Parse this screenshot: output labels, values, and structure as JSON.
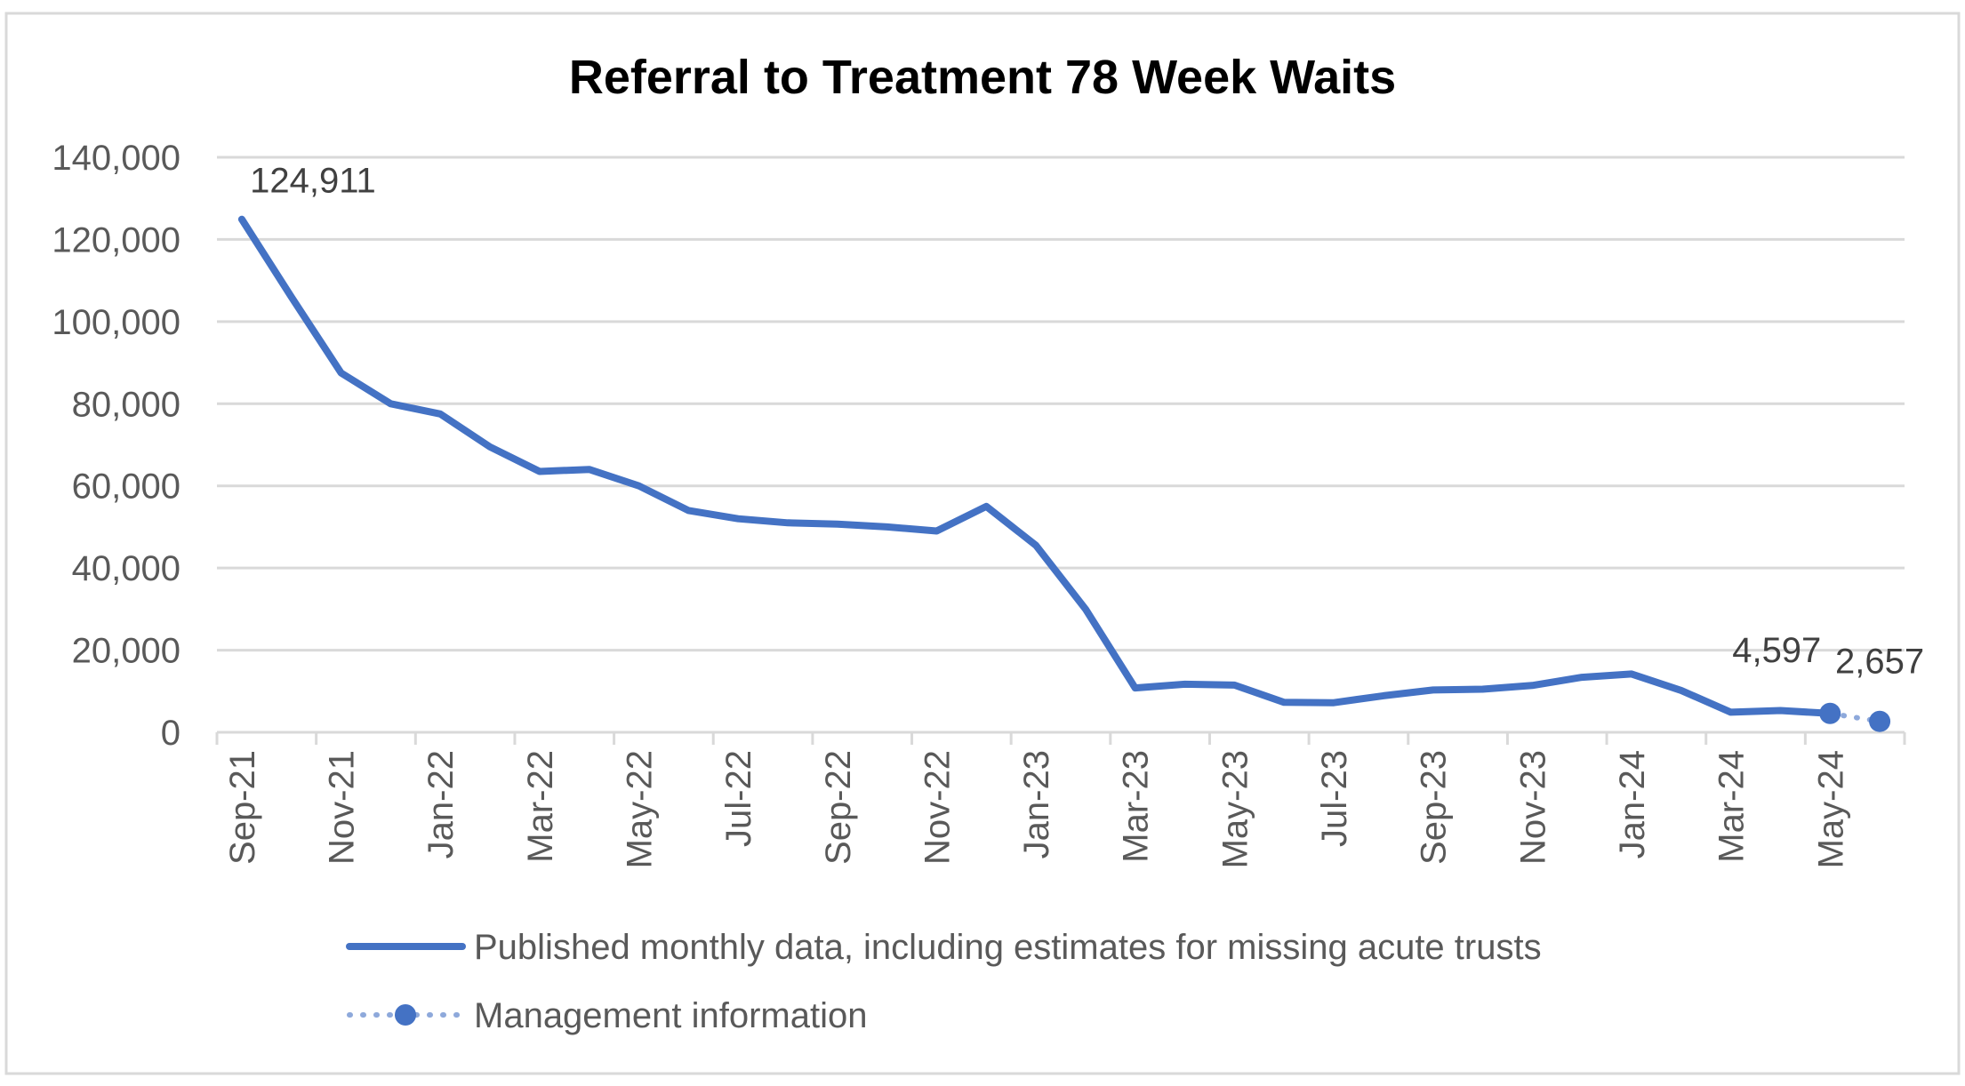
{
  "chart_data": {
    "type": "line",
    "title": "Referral to Treatment 78 Week Waits",
    "xlabel": "",
    "ylabel": "",
    "ylim": [
      0,
      140000
    ],
    "y_ticks": [
      0,
      20000,
      40000,
      60000,
      80000,
      100000,
      120000,
      140000
    ],
    "y_tick_labels": [
      "0",
      "20,000",
      "40,000",
      "60,000",
      "80,000",
      "100,000",
      "120,000",
      "140,000"
    ],
    "x": [
      "Sep-21",
      "Oct-21",
      "Nov-21",
      "Dec-21",
      "Jan-22",
      "Feb-22",
      "Mar-22",
      "Apr-22",
      "May-22",
      "Jun-22",
      "Jul-22",
      "Aug-22",
      "Sep-22",
      "Oct-22",
      "Nov-22",
      "Dec-22",
      "Jan-23",
      "Feb-23",
      "Mar-23",
      "Apr-23",
      "May-23",
      "Jun-23",
      "Jul-23",
      "Aug-23",
      "Sep-23",
      "Oct-23",
      "Nov-23",
      "Dec-23",
      "Jan-24",
      "Feb-24",
      "Mar-24",
      "Apr-24",
      "May-24",
      "Jun-24"
    ],
    "x_tick_labels": [
      "Sep-21",
      "Nov-21",
      "Jan-22",
      "Mar-22",
      "May-22",
      "Jul-22",
      "Sep-22",
      "Nov-22",
      "Jan-23",
      "Mar-23",
      "May-23",
      "Jul-23",
      "Sep-23",
      "Nov-23",
      "Jan-24",
      "Mar-24",
      "May-24"
    ],
    "grid": true,
    "legend_position": "bottom",
    "series": [
      {
        "name": "Published monthly data, including estimates for missing acute trusts",
        "style": "solid",
        "color": "#4472C4",
        "values": [
          124911,
          106000,
          87500,
          80000,
          77500,
          69500,
          63500,
          64000,
          60000,
          54000,
          52000,
          51000,
          50700,
          50000,
          49000,
          55000,
          45500,
          30000,
          10800,
          11700,
          11500,
          7300,
          7200,
          8900,
          10300,
          10500,
          11400,
          13400,
          14200,
          10200,
          4900,
          5300,
          4597,
          null
        ]
      },
      {
        "name": "Management information",
        "style": "dotted",
        "color": "#8EA9DB",
        "marker_color": "#4472C4",
        "values": [
          null,
          null,
          null,
          null,
          null,
          null,
          null,
          null,
          null,
          null,
          null,
          null,
          null,
          null,
          null,
          null,
          null,
          null,
          null,
          null,
          null,
          null,
          null,
          null,
          null,
          null,
          null,
          null,
          null,
          null,
          null,
          null,
          4597,
          2657
        ]
      }
    ],
    "data_labels": [
      {
        "index": 0,
        "series": 0,
        "text": "124,911"
      },
      {
        "index": 32,
        "series": 0,
        "text": "4,597"
      },
      {
        "index": 33,
        "series": 1,
        "text": "2,657"
      }
    ]
  }
}
